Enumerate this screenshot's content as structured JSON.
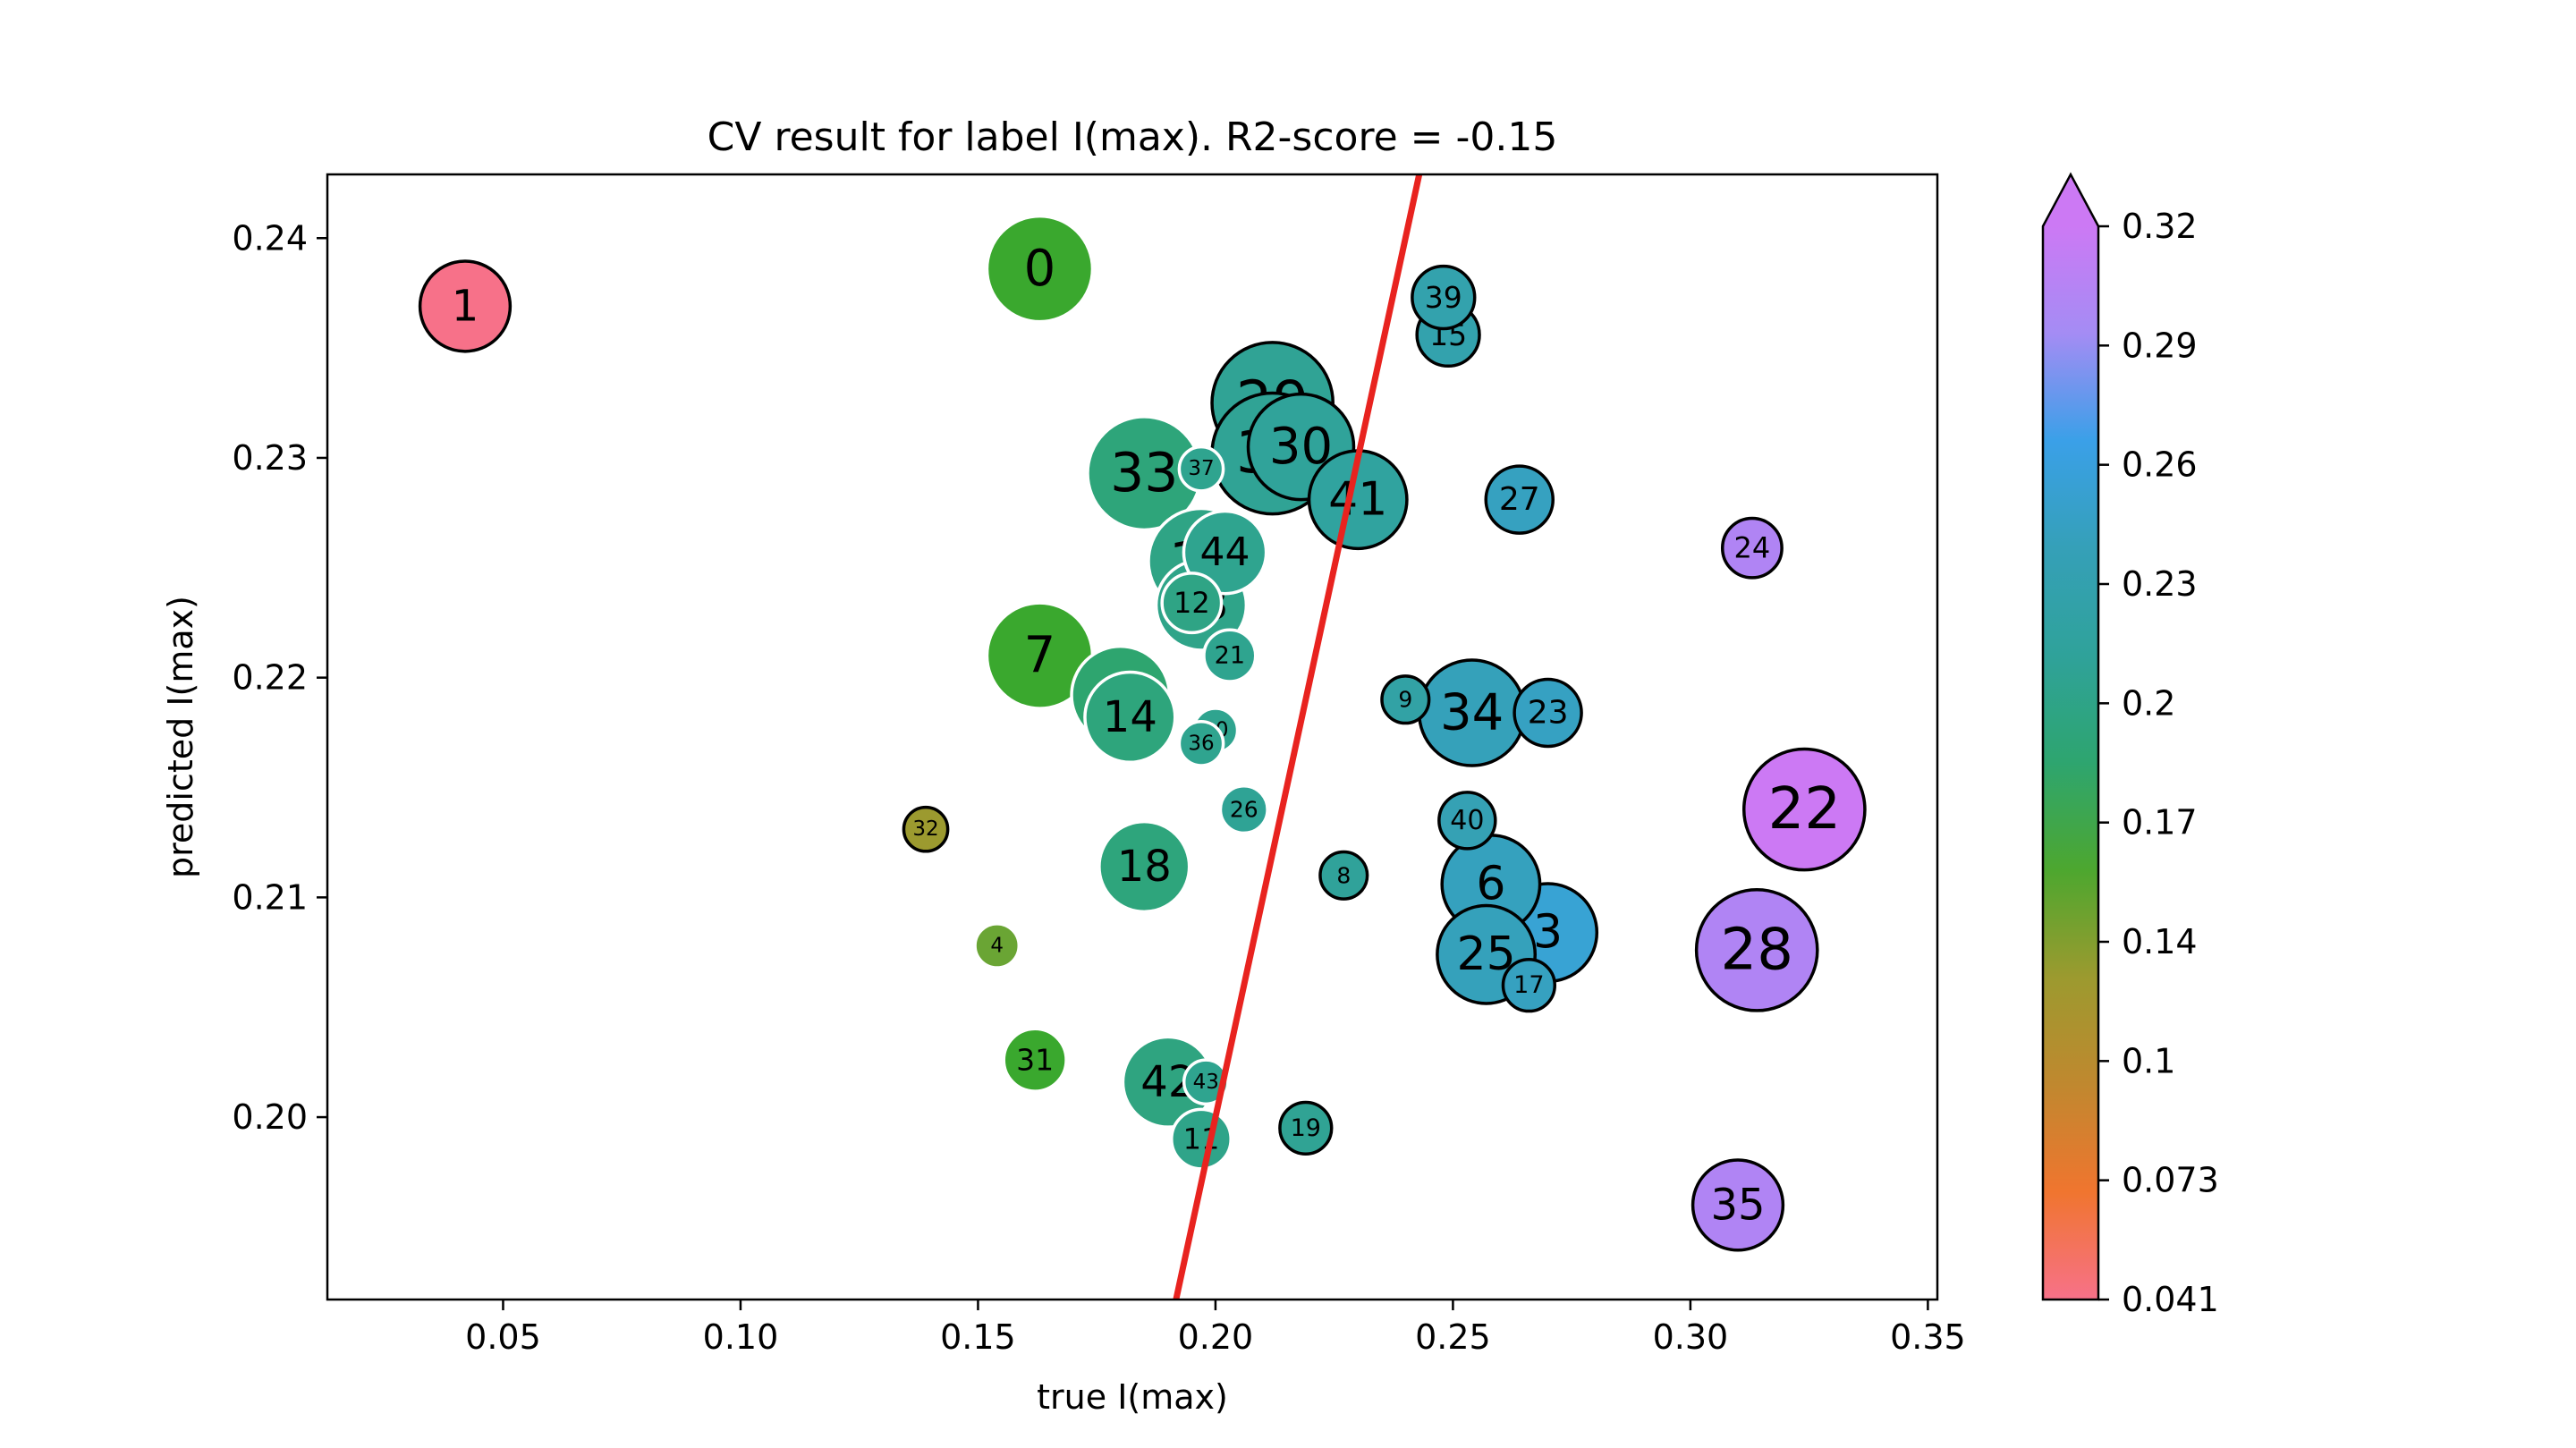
{
  "chart_data": {
    "type": "scatter",
    "title": "CV result for label I(max). R2-score = -0.15",
    "xlabel": "true I(max)",
    "ylabel": "predicted I(max)",
    "xlim": [
      0.013,
      0.352
    ],
    "ylim": [
      0.1917,
      0.2429
    ],
    "xticks": [
      0.05,
      0.1,
      0.15,
      0.2,
      0.25,
      0.3,
      0.35
    ],
    "xtick_labels": [
      "0.05",
      "0.10",
      "0.15",
      "0.20",
      "0.25",
      "0.30",
      "0.35"
    ],
    "yticks": [
      0.2,
      0.21,
      0.22,
      0.23,
      0.24
    ],
    "ytick_labels": [
      "0.20",
      "0.21",
      "0.22",
      "0.23",
      "0.24"
    ],
    "identity_line": {
      "color": "#e8231f",
      "x": [
        0.19,
        0.245
      ]
    },
    "colorbar": {
      "min": 0.041,
      "max": 0.32,
      "extend": "max",
      "ticks": [
        0.041,
        0.073,
        0.1,
        0.14,
        0.17,
        0.2,
        0.23,
        0.26,
        0.29,
        0.32
      ],
      "tick_labels": [
        "0.041",
        "0.073",
        "0.1",
        "0.14",
        "0.17",
        "0.2",
        "0.23",
        "0.26",
        "0.29",
        "0.32"
      ],
      "stops": [
        "#f77189",
        "#f0752f",
        "#c0882f",
        "#9c9a2f",
        "#4da72f",
        "#2ea56f",
        "#2fa29a",
        "#35a0b8",
        "#3aa0e8",
        "#a48cf4",
        "#cc79f4"
      ]
    },
    "points": [
      {
        "id": "0",
        "x": 0.163,
        "y": 0.2386,
        "size": 5,
        "edge": "white",
        "color": "#3aa82e"
      },
      {
        "id": "1",
        "x": 0.042,
        "y": 0.2369,
        "size": 4,
        "edge": "black",
        "color": "#f77189"
      },
      {
        "id": "2",
        "x": 0.18,
        "y": 0.2192,
        "size": 4.5,
        "edge": "white",
        "color": "#2ea56f"
      },
      {
        "id": "3",
        "x": 0.27,
        "y": 0.2084,
        "size": 4.5,
        "edge": "black",
        "color": "#38a3d4"
      },
      {
        "id": "4",
        "x": 0.154,
        "y": 0.2078,
        "size": 1,
        "edge": "white",
        "color": "#6aa534"
      },
      {
        "id": "6",
        "x": 0.258,
        "y": 0.2106,
        "size": 4.5,
        "edge": "black",
        "color": "#35a1be"
      },
      {
        "id": "7",
        "x": 0.163,
        "y": 0.221,
        "size": 5,
        "edge": "white",
        "color": "#3aa82e"
      },
      {
        "id": "8",
        "x": 0.227,
        "y": 0.211,
        "size": 1.2,
        "edge": "black",
        "color": "#30a29a"
      },
      {
        "id": "9",
        "x": 0.24,
        "y": 0.219,
        "size": 1.2,
        "edge": "black",
        "color": "#32a2a5"
      },
      {
        "id": "10",
        "x": 0.197,
        "y": 0.2253,
        "size": 5,
        "edge": "white",
        "color": "#2fa485"
      },
      {
        "id": "11",
        "x": 0.197,
        "y": 0.199,
        "size": 2,
        "edge": "white",
        "color": "#2fa489"
      },
      {
        "id": "12",
        "x": 0.195,
        "y": 0.2234,
        "size": 2,
        "edge": "white",
        "color": "#2fa485"
      },
      {
        "id": "13",
        "x": 0.197,
        "y": 0.2233,
        "size": 4,
        "edge": "white",
        "color": "#2fa489"
      },
      {
        "id": "14",
        "x": 0.182,
        "y": 0.2182,
        "size": 4,
        "edge": "white",
        "color": "#2ea57c"
      },
      {
        "id": "15",
        "x": 0.249,
        "y": 0.2356,
        "size": 2.2,
        "edge": "black",
        "color": "#33a2ad"
      },
      {
        "id": "17",
        "x": 0.266,
        "y": 0.206,
        "size": 1.5,
        "edge": "black",
        "color": "#36a1c0"
      },
      {
        "id": "18",
        "x": 0.185,
        "y": 0.2114,
        "size": 4,
        "edge": "white",
        "color": "#2ea57c"
      },
      {
        "id": "19",
        "x": 0.219,
        "y": 0.1995,
        "size": 1.5,
        "edge": "black",
        "color": "#30a394"
      },
      {
        "id": "20",
        "x": 0.2,
        "y": 0.2176,
        "size": 1,
        "edge": "white",
        "color": "#2fa48f"
      },
      {
        "id": "21",
        "x": 0.203,
        "y": 0.221,
        "size": 1.5,
        "edge": "white",
        "color": "#2fa48f"
      },
      {
        "id": "22",
        "x": 0.324,
        "y": 0.214,
        "size": 6,
        "edge": "black",
        "color": "#cc79f4"
      },
      {
        "id": "23",
        "x": 0.27,
        "y": 0.2184,
        "size": 2.5,
        "edge": "black",
        "color": "#36a1c2"
      },
      {
        "id": "24",
        "x": 0.313,
        "y": 0.2259,
        "size": 2,
        "edge": "black",
        "color": "#b084f4"
      },
      {
        "id": "25",
        "x": 0.257,
        "y": 0.2074,
        "size": 4.5,
        "edge": "black",
        "color": "#35a1bb"
      },
      {
        "id": "26",
        "x": 0.206,
        "y": 0.214,
        "size": 1.2,
        "edge": "white",
        "color": "#2fa395"
      },
      {
        "id": "27",
        "x": 0.264,
        "y": 0.2281,
        "size": 2.5,
        "edge": "black",
        "color": "#36a1c0"
      },
      {
        "id": "28",
        "x": 0.314,
        "y": 0.2076,
        "size": 6,
        "edge": "black",
        "color": "#b084f4"
      },
      {
        "id": "29",
        "x": 0.212,
        "y": 0.2325,
        "size": 6,
        "edge": "black",
        "color": "#30a395"
      },
      {
        "id": "30",
        "x": 0.218,
        "y": 0.2305,
        "size": 5,
        "edge": "black",
        "color": "#30a39a"
      },
      {
        "id": "31",
        "x": 0.162,
        "y": 0.2026,
        "size": 2.2,
        "edge": "white",
        "color": "#3aa82e"
      },
      {
        "id": "32",
        "x": 0.139,
        "y": 0.2131,
        "size": 1,
        "edge": "black",
        "color": "#9c9a2f"
      },
      {
        "id": "33",
        "x": 0.185,
        "y": 0.2293,
        "size": 5.5,
        "edge": "white",
        "color": "#2ea57a"
      },
      {
        "id": "34",
        "x": 0.254,
        "y": 0.2184,
        "size": 5,
        "edge": "black",
        "color": "#35a1ba"
      },
      {
        "id": "35",
        "x": 0.31,
        "y": 0.196,
        "size": 4,
        "edge": "black",
        "color": "#b084f4"
      },
      {
        "id": "36",
        "x": 0.197,
        "y": 0.217,
        "size": 1,
        "edge": "white",
        "color": "#2fa48f"
      },
      {
        "id": "37",
        "x": 0.197,
        "y": 0.2295,
        "size": 1,
        "edge": "white",
        "color": "#2fa48f"
      },
      {
        "id": "38",
        "x": 0.212,
        "y": 0.2302,
        "size": 6,
        "edge": "black",
        "color": "#30a395"
      },
      {
        "id": "39",
        "x": 0.248,
        "y": 0.2373,
        "size": 2.2,
        "edge": "black",
        "color": "#33a2ad"
      },
      {
        "id": "40",
        "x": 0.253,
        "y": 0.2135,
        "size": 1.8,
        "edge": "black",
        "color": "#35a1b4"
      },
      {
        "id": "41",
        "x": 0.23,
        "y": 0.2281,
        "size": 4.5,
        "edge": "black",
        "color": "#30a39f"
      },
      {
        "id": "42",
        "x": 0.19,
        "y": 0.2016,
        "size": 4,
        "edge": "white",
        "color": "#2fa480"
      },
      {
        "id": "43",
        "x": 0.198,
        "y": 0.2016,
        "size": 1,
        "edge": "white",
        "color": "#2fa48f"
      },
      {
        "id": "44",
        "x": 0.202,
        "y": 0.2257,
        "size": 3.5,
        "edge": "white",
        "color": "#2fa48f"
      }
    ]
  }
}
